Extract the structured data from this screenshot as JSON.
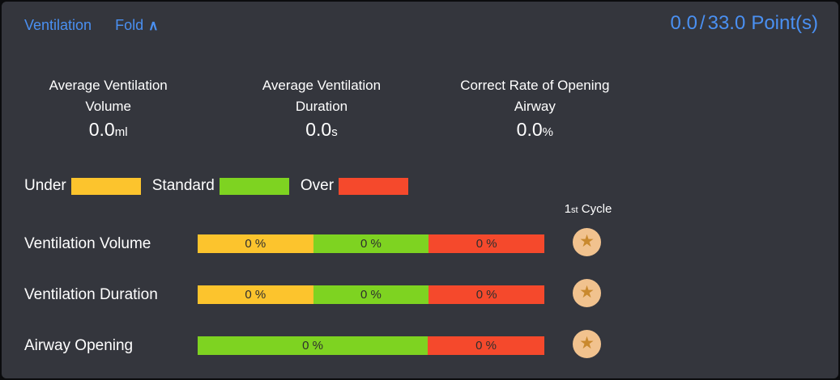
{
  "colors": {
    "panel_background": "#34363d",
    "accent_blue": "#4a90f2",
    "under_yellow": "#fcc42d",
    "standard_green": "#7ed321",
    "over_red": "#f5492c",
    "bar_text": "#2e2e2e",
    "star_badge_background": "#f1c28e",
    "star_glyph": "#c9892e"
  },
  "header": {
    "title": "Ventilation",
    "fold_label": "Fold",
    "fold_icon": "∧",
    "score_earned": "0.0",
    "score_separator": "/",
    "score_total": "33.0",
    "score_unit": "Point(s)"
  },
  "stats": [
    {
      "label_line1": "Average Ventilation",
      "label_line2": "Volume",
      "value": "0.0",
      "unit": "ml"
    },
    {
      "label_line1": "Average Ventilation",
      "label_line2": "Duration",
      "value": "0.0",
      "unit": "s"
    },
    {
      "label_line1": "Correct Rate of Opening",
      "label_line2": "Airway",
      "value": "0.0",
      "unit": "%"
    }
  ],
  "legend": {
    "items": [
      {
        "label": "Under",
        "color": "#fcc42d"
      },
      {
        "label": "Standard",
        "color": "#7ed321"
      },
      {
        "label": "Over",
        "color": "#f5492c"
      }
    ]
  },
  "cycle": {
    "number": "1",
    "ordinal": "st",
    "label": " Cycle"
  },
  "icons": {
    "star": "★"
  },
  "rows": [
    {
      "label": "Ventilation Volume",
      "segments": [
        {
          "status": "under",
          "value": "0 %",
          "color": "#fcc42d",
          "width_pct": 33.33
        },
        {
          "status": "standard",
          "value": "0 %",
          "color": "#7ed321",
          "width_pct": 33.34
        },
        {
          "status": "over",
          "value": "0 %",
          "color": "#f5492c",
          "width_pct": 33.33
        }
      ]
    },
    {
      "label": "Ventilation Duration",
      "segments": [
        {
          "status": "under",
          "value": "0 %",
          "color": "#fcc42d",
          "width_pct": 33.33
        },
        {
          "status": "standard",
          "value": "0 %",
          "color": "#7ed321",
          "width_pct": 33.34
        },
        {
          "status": "over",
          "value": "0 %",
          "color": "#f5492c",
          "width_pct": 33.33
        }
      ]
    },
    {
      "label": "Airway Opening",
      "segments": [
        {
          "status": "standard",
          "value": "0 %",
          "color": "#7ed321",
          "width_pct": 66.36
        },
        {
          "status": "over",
          "value": "0 %",
          "color": "#f5492c",
          "width_pct": 33.64
        }
      ]
    }
  ]
}
